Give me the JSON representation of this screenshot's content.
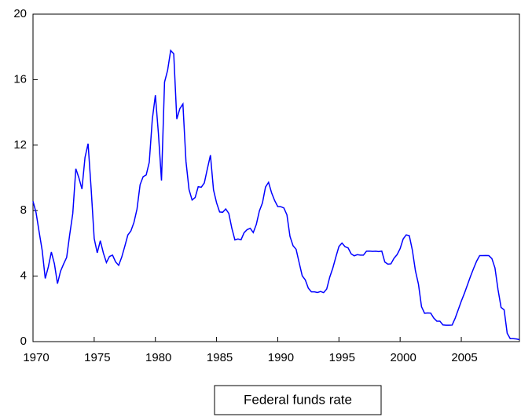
{
  "chart_data": {
    "type": "line",
    "x": [
      1970,
      1970.25,
      1970.5,
      1970.75,
      1971,
      1971.25,
      1971.5,
      1971.75,
      1972,
      1972.25,
      1972.5,
      1972.75,
      1973,
      1973.25,
      1973.5,
      1973.75,
      1974,
      1974.25,
      1974.5,
      1974.75,
      1975,
      1975.25,
      1975.5,
      1975.75,
      1976,
      1976.25,
      1976.5,
      1976.75,
      1977,
      1977.25,
      1977.5,
      1977.75,
      1978,
      1978.25,
      1978.5,
      1978.75,
      1979,
      1979.25,
      1979.5,
      1979.75,
      1980,
      1980.25,
      1980.5,
      1980.75,
      1981,
      1981.25,
      1981.5,
      1981.75,
      1982,
      1982.25,
      1982.5,
      1982.75,
      1983,
      1983.25,
      1983.5,
      1983.75,
      1984,
      1984.25,
      1984.5,
      1984.75,
      1985,
      1985.25,
      1985.5,
      1985.75,
      1986,
      1986.25,
      1986.5,
      1986.75,
      1987,
      1987.25,
      1987.5,
      1987.75,
      1988,
      1988.25,
      1988.5,
      1988.75,
      1989,
      1989.25,
      1989.5,
      1989.75,
      1990,
      1990.25,
      1990.5,
      1990.75,
      1991,
      1991.25,
      1991.5,
      1991.75,
      1992,
      1992.25,
      1992.5,
      1992.75,
      1993,
      1993.25,
      1993.5,
      1993.75,
      1994,
      1994.25,
      1994.5,
      1994.75,
      1995,
      1995.25,
      1995.5,
      1995.75,
      1996,
      1996.25,
      1996.5,
      1996.75,
      1997,
      1997.25,
      1997.5,
      1997.75,
      1998,
      1998.25,
      1998.5,
      1998.75,
      1999,
      1999.25,
      1999.5,
      1999.75,
      2000,
      2000.25,
      2000.5,
      2000.75,
      2001,
      2001.25,
      2001.5,
      2001.75,
      2002,
      2002.25,
      2002.5,
      2002.75,
      2003,
      2003.25,
      2003.5,
      2003.75,
      2004,
      2004.25,
      2004.5,
      2004.75,
      2005,
      2005.25,
      2005.5,
      2005.75,
      2006,
      2006.25,
      2006.5,
      2006.75,
      2007,
      2007.25,
      2007.5,
      2007.75,
      2008,
      2008.25,
      2008.5,
      2008.75,
      2009,
      2009.25,
      2009.5,
      2009.75
    ],
    "series": [
      {
        "name": "Federal funds rate",
        "color": "#0000ff",
        "values": [
          8.57,
          7.88,
          6.7,
          5.57,
          3.86,
          4.56,
          5.47,
          4.75,
          3.54,
          4.3,
          4.74,
          5.14,
          6.54,
          7.82,
          10.56,
          10.0,
          9.32,
          11.25,
          12.09,
          9.35,
          6.3,
          5.42,
          6.16,
          5.41,
          4.83,
          5.2,
          5.28,
          4.87,
          4.66,
          5.16,
          5.82,
          6.51,
          6.76,
          7.28,
          8.1,
          9.58,
          10.07,
          10.18,
          10.95,
          13.58,
          15.05,
          12.69,
          9.84,
          15.85,
          16.57,
          17.78,
          17.58,
          13.59,
          14.23,
          14.51,
          11.01,
          9.29,
          8.65,
          8.8,
          9.46,
          9.43,
          9.69,
          10.56,
          11.39,
          9.27,
          8.48,
          7.92,
          7.9,
          8.1,
          7.83,
          6.92,
          6.21,
          6.27,
          6.22,
          6.65,
          6.84,
          6.92,
          6.66,
          7.16,
          7.98,
          8.47,
          9.44,
          9.73,
          9.08,
          8.61,
          8.25,
          8.24,
          8.16,
          7.74,
          6.43,
          5.86,
          5.64,
          4.82,
          4.02,
          3.77,
          3.26,
          3.04,
          3.04,
          3.0,
          3.06,
          2.99,
          3.21,
          3.94,
          4.49,
          5.17,
          5.81,
          6.02,
          5.8,
          5.72,
          5.36,
          5.24,
          5.31,
          5.28,
          5.28,
          5.52,
          5.53,
          5.51,
          5.52,
          5.5,
          5.53,
          4.86,
          4.73,
          4.75,
          5.09,
          5.31,
          5.68,
          6.27,
          6.52,
          6.47,
          5.59,
          4.33,
          3.5,
          2.13,
          1.73,
          1.75,
          1.74,
          1.44,
          1.25,
          1.25,
          1.02,
          1.0,
          1.0,
          1.01,
          1.43,
          1.95,
          2.47,
          2.94,
          3.46,
          3.98,
          4.46,
          4.91,
          5.25,
          5.25,
          5.26,
          5.25,
          5.07,
          4.5,
          3.18,
          2.09,
          1.94,
          0.51,
          0.18,
          0.18,
          0.16,
          0.12
        ]
      }
    ],
    "xlim": [
      1970,
      2009.75
    ],
    "xticks": [
      1970,
      1975,
      1980,
      1985,
      1990,
      1995,
      2000,
      2005
    ],
    "ylim": [
      0,
      20
    ],
    "yticks": [
      0,
      4,
      8,
      12,
      16,
      20
    ]
  }
}
